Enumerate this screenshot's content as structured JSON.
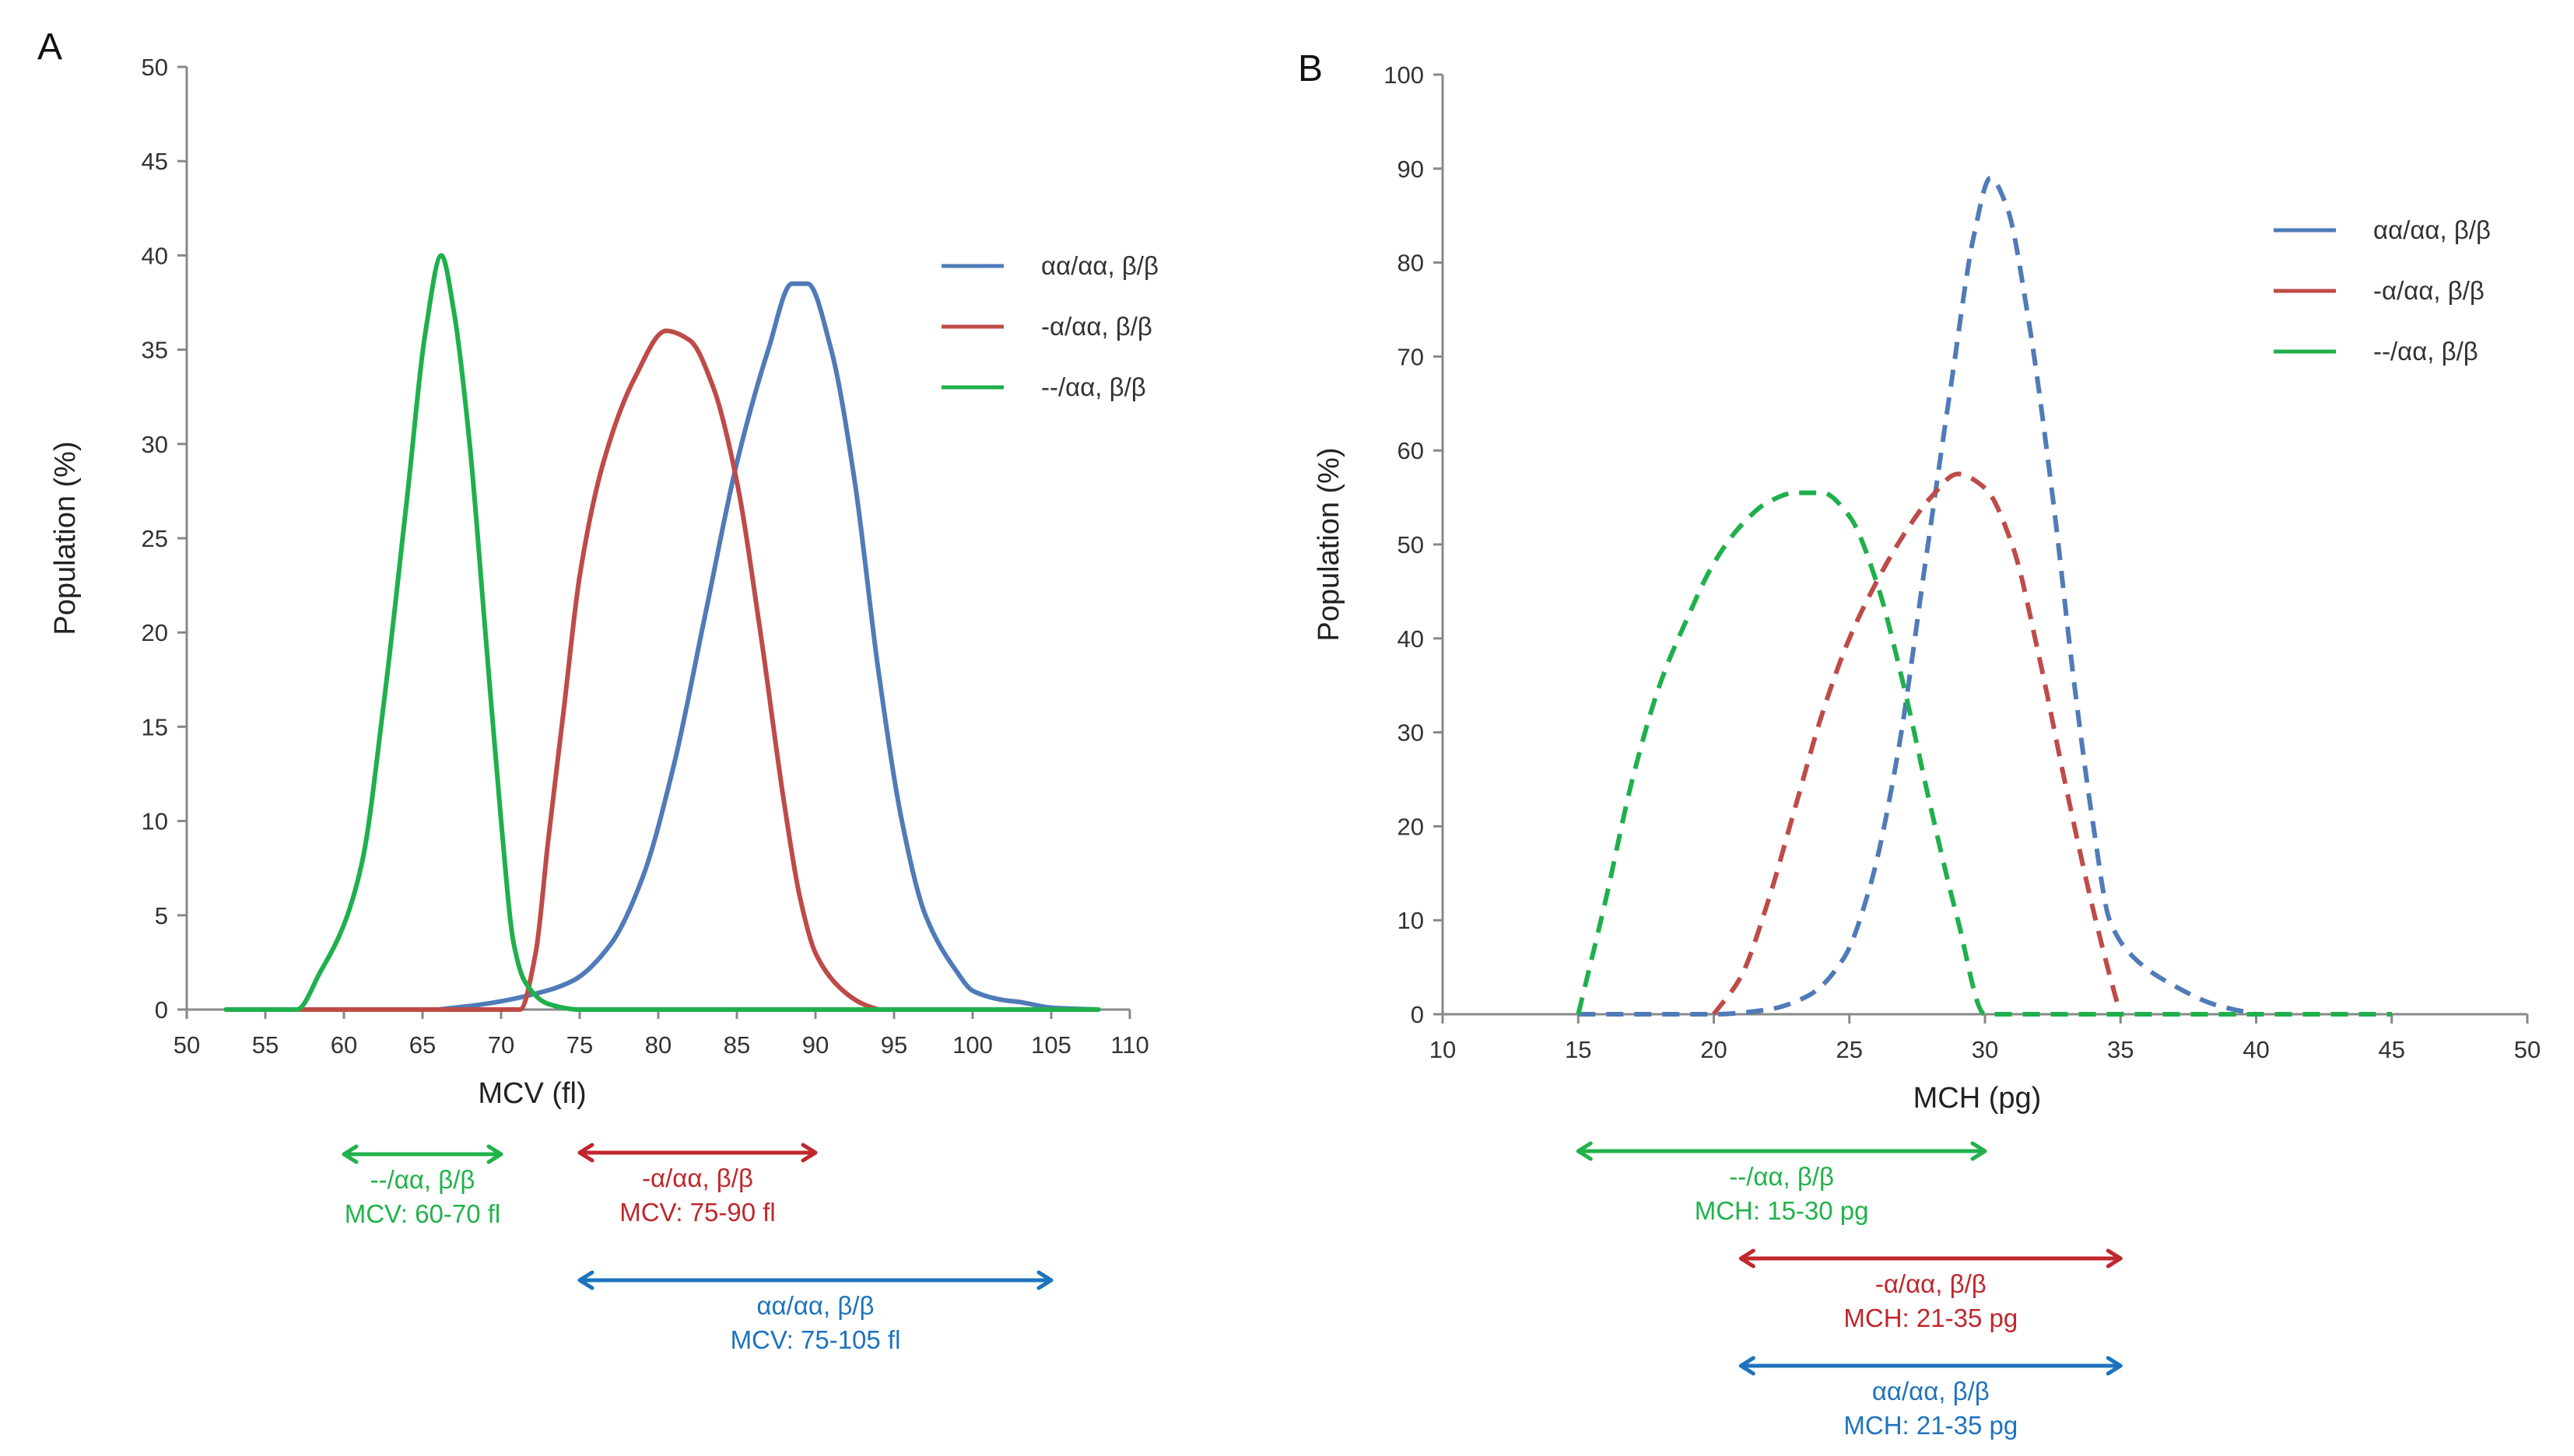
{
  "colors": {
    "blue": "#4F7BB8",
    "red": "#BE4B48",
    "green": "#1FB04C",
    "arrow_blue": "#1E73BE",
    "arrow_red": "#C0272D",
    "arrow_green": "#21B24B",
    "axis": "#888888"
  },
  "chart_data": [
    {
      "panel": "A",
      "type": "line",
      "line_style": "solid",
      "xlabel": "MCV (fl)",
      "ylabel": "Population (%)",
      "xlim": [
        50,
        110
      ],
      "ylim": [
        0,
        50
      ],
      "x_ticks": [
        "50",
        "55",
        "60",
        "65",
        "70",
        "75",
        "80",
        "85",
        "90",
        "95",
        "100",
        "105",
        "110"
      ],
      "y_ticks": [
        "0",
        "5",
        "10",
        "15",
        "20",
        "25",
        "30",
        "35",
        "40",
        "45",
        "50"
      ],
      "legend": [
        "αα/αα, β/β",
        "-α/αα, β/β",
        "--/αα, β/β"
      ],
      "series": [
        {
          "name": "αα/αα, β/β",
          "color_key": "blue",
          "points": [
            [
              66,
              0
            ],
            [
              69,
              0.3
            ],
            [
              72,
              0.8
            ],
            [
              74.5,
              1.5
            ],
            [
              77,
              3.5
            ],
            [
              79,
              7
            ],
            [
              81,
              13
            ],
            [
              83,
              21
            ],
            [
              85,
              29
            ],
            [
              87,
              35
            ],
            [
              88.5,
              38.5
            ],
            [
              89.5,
              38.5
            ],
            [
              91,
              35
            ],
            [
              92.5,
              28
            ],
            [
              94,
              18
            ],
            [
              95.5,
              10
            ],
            [
              97,
              5
            ],
            [
              99,
              2
            ],
            [
              100,
              1
            ],
            [
              102,
              0.5
            ],
            [
              103,
              0.4
            ],
            [
              105,
              0.1
            ],
            [
              108,
              0
            ]
          ]
        },
        {
          "name": "-α/αα, β/β",
          "color_key": "red",
          "points": [
            [
              52.5,
              0
            ],
            [
              71.2,
              0
            ],
            [
              72.2,
              3
            ],
            [
              73,
              9
            ],
            [
              74,
              16
            ],
            [
              75,
              23
            ],
            [
              76.5,
              29
            ],
            [
              78.5,
              33.5
            ],
            [
              80.5,
              36
            ],
            [
              82,
              35.5
            ],
            [
              83.5,
              33
            ],
            [
              85,
              28
            ],
            [
              86.5,
              20
            ],
            [
              88,
              11
            ],
            [
              89,
              6
            ],
            [
              90,
              3
            ],
            [
              91.5,
              1.2
            ],
            [
              93,
              0.3
            ],
            [
              94,
              0
            ]
          ]
        },
        {
          "name": "--/αα, β/β",
          "color_key": "green",
          "points": [
            [
              52.5,
              0
            ],
            [
              57,
              0
            ],
            [
              58.5,
              2
            ],
            [
              60,
              4.5
            ],
            [
              61.2,
              8
            ],
            [
              62.5,
              16
            ],
            [
              64,
              27
            ],
            [
              65.2,
              36
            ],
            [
              66.2,
              40
            ],
            [
              67,
              37
            ],
            [
              68,
              30
            ],
            [
              69,
              20
            ],
            [
              70,
              10
            ],
            [
              70.8,
              3.5
            ],
            [
              71.5,
              1.5
            ],
            [
              73,
              0.3
            ],
            [
              75,
              0
            ],
            [
              80,
              0
            ],
            [
              90,
              0
            ],
            [
              100,
              0
            ],
            [
              108,
              0
            ]
          ]
        }
      ],
      "range_annotations": [
        {
          "label": "--/αα, β/β",
          "range_text": "MCV: 60-70 fl",
          "from": 60,
          "to": 70,
          "color_key": "arrow_green"
        },
        {
          "label": "-α/αα, β/β",
          "range_text": "MCV: 75-90 fl",
          "from": 75,
          "to": 90,
          "color_key": "arrow_red"
        },
        {
          "label": "αα/αα, β/β",
          "range_text": "MCV: 75-105 fl",
          "from": 75,
          "to": 105,
          "color_key": "arrow_blue"
        }
      ]
    },
    {
      "panel": "B",
      "type": "line",
      "line_style": "dashed",
      "xlabel": "MCH (pg)",
      "ylabel": "Population (%)",
      "xlim": [
        10,
        50
      ],
      "ylim": [
        0,
        100
      ],
      "x_ticks": [
        "10",
        "15",
        "20",
        "25",
        "30",
        "35",
        "40",
        "45",
        "50"
      ],
      "y_ticks": [
        "0",
        "10",
        "20",
        "30",
        "40",
        "50",
        "60",
        "70",
        "80",
        "90",
        "100"
      ],
      "legend": [
        "αα/αα, β/β",
        "-α/αα, β/β",
        "--/αα, β/β"
      ],
      "series": [
        {
          "name": "αα/αα, β/β",
          "color_key": "blue",
          "points": [
            [
              15,
              0
            ],
            [
              20,
              0
            ],
            [
              22,
              0.5
            ],
            [
              23.5,
              2
            ],
            [
              24.8,
              6
            ],
            [
              25.8,
              14
            ],
            [
              26.8,
              28
            ],
            [
              27.8,
              48
            ],
            [
              28.8,
              68
            ],
            [
              29.6,
              83
            ],
            [
              30.2,
              89
            ],
            [
              30.8,
              86
            ],
            [
              31.6,
              74
            ],
            [
              32.5,
              55
            ],
            [
              33.3,
              35
            ],
            [
              34,
              20
            ],
            [
              34.6,
              10
            ],
            [
              35.5,
              6
            ],
            [
              37,
              3
            ],
            [
              38.5,
              1
            ],
            [
              40,
              0
            ]
          ]
        },
        {
          "name": "-α/αα, β/β",
          "color_key": "red",
          "points": [
            [
              20,
              0
            ],
            [
              21,
              4
            ],
            [
              22,
              12
            ],
            [
              23,
              22
            ],
            [
              24,
              32
            ],
            [
              25,
              40
            ],
            [
              26,
              46
            ],
            [
              27,
              51
            ],
            [
              28,
              55
            ],
            [
              29,
              57.5
            ],
            [
              30,
              56
            ],
            [
              31,
              50
            ],
            [
              32,
              38
            ],
            [
              33,
              24
            ],
            [
              34,
              11
            ],
            [
              34.8,
              2
            ],
            [
              35,
              0
            ]
          ]
        },
        {
          "name": "--/αα, β/β",
          "color_key": "green",
          "points": [
            [
              15,
              0
            ],
            [
              16,
              12
            ],
            [
              17,
              25
            ],
            [
              18,
              35
            ],
            [
              19,
              42
            ],
            [
              20,
              48
            ],
            [
              21,
              52
            ],
            [
              22,
              54.5
            ],
            [
              23,
              55.5
            ],
            [
              24,
              55.5
            ],
            [
              25,
              53
            ],
            [
              26,
              46
            ],
            [
              27,
              35
            ],
            [
              28,
              22
            ],
            [
              29,
              10
            ],
            [
              30,
              0
            ],
            [
              35,
              0
            ],
            [
              40,
              0
            ],
            [
              45,
              0
            ]
          ]
        }
      ],
      "range_annotations": [
        {
          "label": "--/αα, β/β",
          "range_text": "MCH: 15-30 pg",
          "from": 15,
          "to": 30,
          "color_key": "arrow_green"
        },
        {
          "label": "-α/αα, β/β",
          "range_text": "MCH: 21-35 pg",
          "from": 21,
          "to": 35,
          "color_key": "arrow_red"
        },
        {
          "label": "αα/αα, β/β",
          "range_text": "MCH: 21-35 pg",
          "from": 21,
          "to": 35,
          "color_key": "arrow_blue"
        }
      ]
    }
  ]
}
